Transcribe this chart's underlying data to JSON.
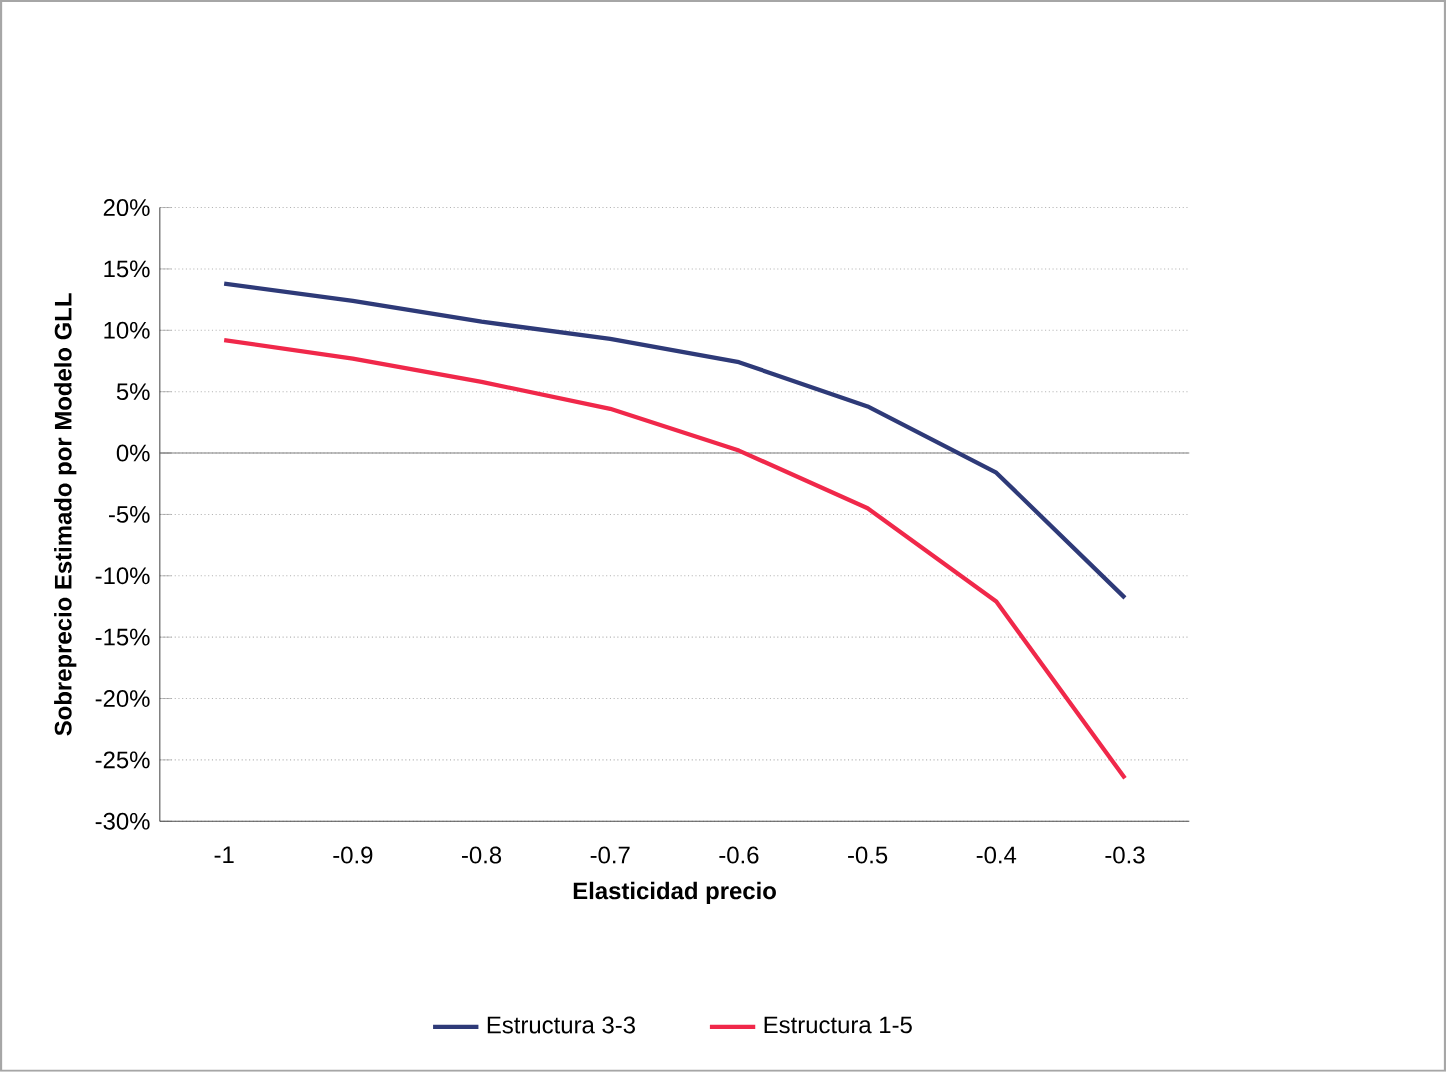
{
  "chart_data": {
    "type": "line",
    "xlabel": "Elasticidad precio",
    "ylabel": "Sobreprecio Estimado por Modelo GLL",
    "categories": [
      "-1",
      "-0.9",
      "-0.8",
      "-0.7",
      "-0.6",
      "-0.5",
      "-0.4",
      "-0.3"
    ],
    "series": [
      {
        "name": "Estructura 3-3",
        "color": "#2e3a78",
        "values": [
          13.8,
          12.4,
          10.7,
          9.3,
          7.4,
          3.8,
          -1.6,
          -11.8
        ]
      },
      {
        "name": "Estructura 1-5",
        "color": "#f0284a",
        "values": [
          9.2,
          7.7,
          5.8,
          3.6,
          0.2,
          -4.5,
          -12.1,
          -26.5
        ]
      }
    ],
    "ylim": [
      -30,
      20
    ],
    "yticks": [
      {
        "value": -30,
        "label": "-30%"
      },
      {
        "value": -25,
        "label": "-25%"
      },
      {
        "value": -20,
        "label": "-20%"
      },
      {
        "value": -15,
        "label": "-15%"
      },
      {
        "value": -10,
        "label": "-10%"
      },
      {
        "value": -5,
        "label": "-5%"
      },
      {
        "value": 0,
        "label": "0%"
      },
      {
        "value": 5,
        "label": "5%"
      },
      {
        "value": 10,
        "label": "10%"
      },
      {
        "value": 15,
        "label": "15%"
      },
      {
        "value": 20,
        "label": "20%"
      }
    ],
    "grid": "y",
    "legend": "bottom",
    "marker": "none",
    "line_style": "solid"
  }
}
